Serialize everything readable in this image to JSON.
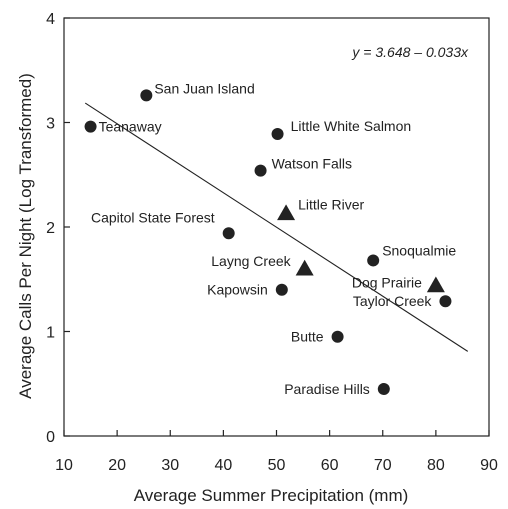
{
  "chart_data": {
    "type": "scatter",
    "title": "",
    "xlabel": "Average Summer Precipitation (mm)",
    "ylabel": "Average Calls Per Night (Log Transformed)",
    "xlim": [
      10,
      90
    ],
    "ylim": [
      0,
      4
    ],
    "xticks": [
      "10",
      "20",
      "30",
      "40",
      "50",
      "60",
      "70",
      "80",
      "90"
    ],
    "yticks": [
      "0",
      "1",
      "2",
      "3",
      "4"
    ],
    "grid": false,
    "equation": "y = 3.648 – 0.033x",
    "regression": {
      "intercept": 3.648,
      "slope": -0.033,
      "x_range": [
        14,
        86
      ]
    },
    "points": [
      {
        "label": "San Juan Island",
        "x": 25.5,
        "y": 3.26,
        "marker": "circle"
      },
      {
        "label": "Teanaway",
        "x": 15,
        "y": 2.96,
        "marker": "circle"
      },
      {
        "label": "Little White Salmon",
        "x": 50.2,
        "y": 2.89,
        "marker": "circle"
      },
      {
        "label": "Watson Falls",
        "x": 47,
        "y": 2.54,
        "marker": "circle"
      },
      {
        "label": "Little River",
        "x": 51.8,
        "y": 2.13,
        "marker": "triangle"
      },
      {
        "label": "Capitol State Forest",
        "x": 41,
        "y": 1.94,
        "marker": "circle"
      },
      {
        "label": "Layng Creek",
        "x": 55.3,
        "y": 1.6,
        "marker": "triangle"
      },
      {
        "label": "Snoqualmie",
        "x": 68.2,
        "y": 1.68,
        "marker": "circle"
      },
      {
        "label": "Dog Prairie",
        "x": 80,
        "y": 1.44,
        "marker": "triangle"
      },
      {
        "label": "Kapowsin",
        "x": 51,
        "y": 1.4,
        "marker": "circle"
      },
      {
        "label": "Taylor Creek",
        "x": 81.8,
        "y": 1.29,
        "marker": "circle"
      },
      {
        "label": "Butte",
        "x": 61.5,
        "y": 0.95,
        "marker": "circle"
      },
      {
        "label": "Paradise Hills",
        "x": 70.2,
        "y": 0.45,
        "marker": "circle"
      }
    ]
  }
}
